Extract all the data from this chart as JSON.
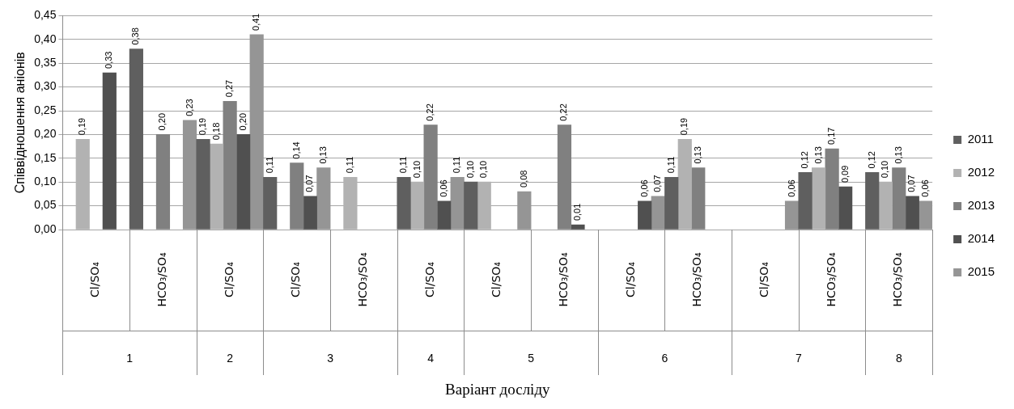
{
  "chart_data": {
    "type": "bar",
    "xlabel": "Варіант досліду",
    "ylabel": "Співвідношення аніонів",
    "categories": [
      "Cl/SO₄",
      "HCO₃/SO₄",
      "Cl/SO₄",
      "Cl/SO₄",
      "HCO₃/SO₄",
      "Cl/SO₄",
      "Cl/SO₄",
      "HCO₃/SO₄",
      "Cl/SO₄",
      "HCO₃/SO₄",
      "Cl/SO₄",
      "HCO₃/SO₄",
      "HCO₃/SO₄"
    ],
    "annotations": [
      "1",
      "2",
      "3",
      "4",
      "5",
      "6",
      "7",
      "8"
    ],
    "series": [
      {
        "name": "2011",
        "color": "#5f5f5f",
        "values": [
          null,
          0.38,
          0.19,
          0.11,
          null,
          0.11,
          0.1,
          null,
          null,
          0.11,
          null,
          0.12,
          0.12
        ],
        "value_labels": [
          null,
          "0,38",
          "0,19",
          "0,11",
          null,
          "0,11",
          "0,10",
          null,
          null,
          "0,11",
          null,
          "0,12",
          "0,12"
        ]
      },
      {
        "name": "2012",
        "color": "#b2b2b2",
        "values": [
          0.19,
          null,
          0.18,
          null,
          0.11,
          0.1,
          0.1,
          null,
          null,
          0.19,
          null,
          0.13,
          0.1
        ],
        "value_labels": [
          "0,19",
          null,
          "0,18",
          null,
          "0,11",
          "0,10",
          "0,10",
          null,
          null,
          "0,19",
          null,
          "0,13",
          "0,10"
        ]
      },
      {
        "name": "2013",
        "color": "#808080",
        "values": [
          null,
          0.2,
          0.27,
          0.14,
          null,
          0.22,
          null,
          0.22,
          null,
          0.13,
          null,
          0.17,
          0.13
        ],
        "value_labels": [
          null,
          "0,20",
          "0,27",
          "0,14",
          null,
          "0,22",
          null,
          "0,22",
          null,
          "0,13",
          null,
          "0,17",
          "0,13"
        ]
      },
      {
        "name": "2014",
        "color": "#505050",
        "values": [
          0.33,
          null,
          0.2,
          0.07,
          null,
          0.06,
          null,
          0.01,
          0.06,
          null,
          null,
          0.09,
          0.07
        ],
        "value_labels": [
          "0,33",
          null,
          "0,20",
          "0,07",
          null,
          "0,06",
          null,
          "0,01",
          "0,06",
          null,
          null,
          "0,09",
          "0,07"
        ]
      },
      {
        "name": "2015",
        "color": "#959595",
        "values": [
          null,
          0.23,
          0.41,
          0.13,
          null,
          0.11,
          0.08,
          null,
          0.07,
          null,
          0.06,
          null,
          0.06
        ],
        "value_labels": [
          null,
          "0,23",
          "0,41",
          "0,13",
          null,
          "0,11",
          "0,08",
          null,
          "0,07",
          null,
          "0,06",
          null,
          "0,06"
        ]
      }
    ],
    "ylim": [
      0,
      0.45
    ],
    "yticks": [
      {
        "value": 0,
        "label": "0,00"
      },
      {
        "value": 0.05,
        "label": "0,05"
      },
      {
        "value": 0.1,
        "label": "0,10"
      },
      {
        "value": 0.15,
        "label": "0,15"
      },
      {
        "value": 0.2,
        "label": "0,20"
      },
      {
        "value": 0.25,
        "label": "0,25"
      },
      {
        "value": 0.3,
        "label": "0,30"
      },
      {
        "value": 0.35,
        "label": "0,35"
      },
      {
        "value": 0.4,
        "label": "0,40"
      },
      {
        "value": 0.45,
        "label": "0,45"
      }
    ],
    "grid": "y",
    "legend": "right"
  }
}
